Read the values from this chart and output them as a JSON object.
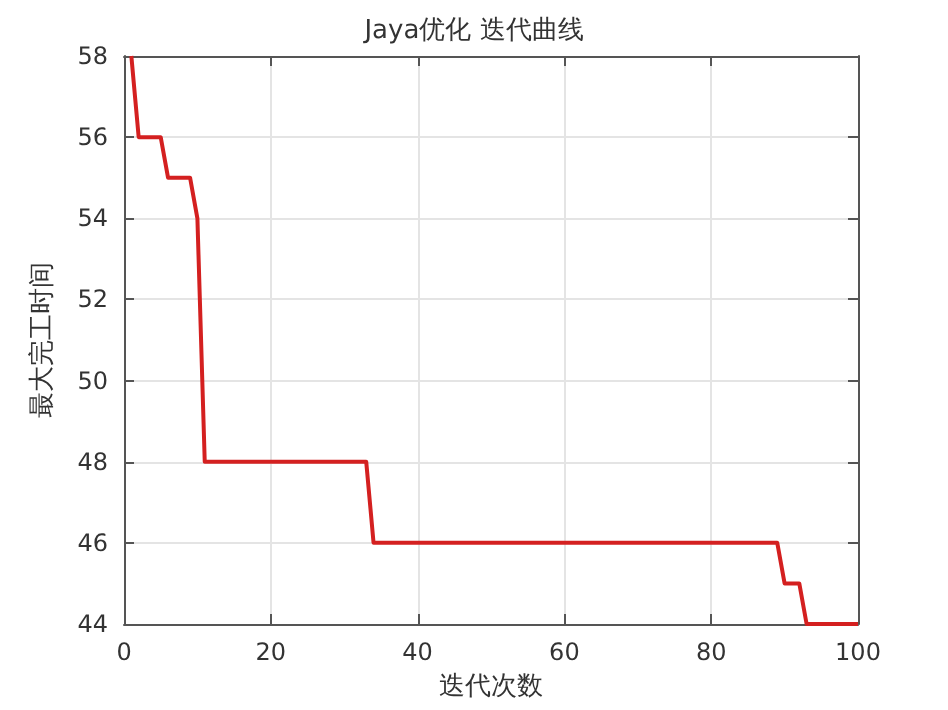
{
  "chart_data": {
    "type": "line",
    "title": "Jaya优化 迭代曲线",
    "xlabel": "迭代次数",
    "ylabel": "最大完工时间",
    "x": [
      1,
      2,
      5,
      6,
      9,
      10,
      11,
      33,
      34,
      89,
      90,
      92,
      93,
      100
    ],
    "series": [
      {
        "color": "#d42020",
        "values": [
          58,
          56,
          56,
          55,
          55,
          54,
          48,
          48,
          46,
          46,
          45,
          45,
          44,
          44
        ]
      }
    ],
    "xlim": [
      0,
      100
    ],
    "xticks": [
      0,
      20,
      40,
      60,
      80,
      100
    ],
    "ylim": [
      44,
      58
    ],
    "yticks": [
      44,
      46,
      48,
      50,
      52,
      54,
      56,
      58
    ],
    "grid": true,
    "marker": "none",
    "line_style": "solid"
  }
}
